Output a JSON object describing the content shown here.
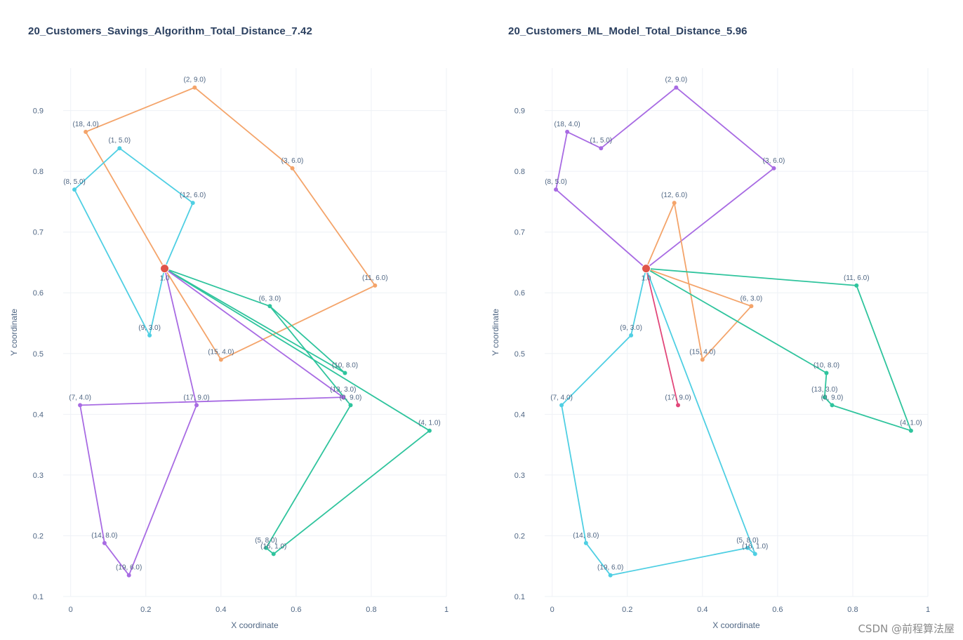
{
  "watermark": "CSDN @前程算法屋",
  "chart_data": [
    {
      "type": "line",
      "title": "20_Customers_Savings_Algorithm_Total_Distance_7.42",
      "xlabel": "X coordinate",
      "ylabel": "Y coordinate",
      "xlim": [
        -0.02,
        1.0
      ],
      "ylim": [
        0.1,
        0.97
      ],
      "x_ticks": [
        0,
        0.2,
        0.4,
        0.6,
        0.8,
        1
      ],
      "x_tick_labels": [
        "0",
        "0.2",
        "0.4",
        "0.6",
        "0.8",
        "1"
      ],
      "y_ticks": [
        0.1,
        0.2,
        0.3,
        0.4,
        0.5,
        0.6,
        0.7,
        0.8,
        0.9
      ],
      "y_tick_labels": [
        "0.1",
        "0.2",
        "0.3",
        "0.4",
        "0.5",
        "0.6",
        "0.7",
        "0.8",
        "0.9"
      ],
      "depot": {
        "x": 0.25,
        "y": 0.64,
        "label": "1.0"
      },
      "series": [
        {
          "name": "route-orange",
          "color": "#f4a46a",
          "points": [
            {
              "x": 0.25,
              "y": 0.64,
              "label": ""
            },
            {
              "x": 0.04,
              "y": 0.865,
              "label": "(18, 4.0)"
            },
            {
              "x": 0.33,
              "y": 0.938,
              "label": "(2, 9.0)"
            },
            {
              "x": 0.59,
              "y": 0.805,
              "label": "(3, 6.0)"
            },
            {
              "x": 0.81,
              "y": 0.612,
              "label": "(11, 6.0)"
            },
            {
              "x": 0.4,
              "y": 0.49,
              "label": "(15, 4.0)"
            },
            {
              "x": 0.25,
              "y": 0.64,
              "label": ""
            }
          ]
        },
        {
          "name": "route-cyan",
          "color": "#4fcfe3",
          "points": [
            {
              "x": 0.25,
              "y": 0.64,
              "label": ""
            },
            {
              "x": 0.325,
              "y": 0.748,
              "label": "(12, 6.0)"
            },
            {
              "x": 0.13,
              "y": 0.838,
              "label": "(1, 5.0)"
            },
            {
              "x": 0.01,
              "y": 0.77,
              "label": "(8, 5.0)"
            },
            {
              "x": 0.21,
              "y": 0.53,
              "label": "(9, 3.0)"
            },
            {
              "x": 0.25,
              "y": 0.64,
              "label": ""
            }
          ]
        },
        {
          "name": "route-teal",
          "color": "#2fc49d",
          "points": [
            {
              "x": 0.25,
              "y": 0.64,
              "label": ""
            },
            {
              "x": 0.53,
              "y": 0.578,
              "label": "(6, 3.0)"
            },
            {
              "x": 0.73,
              "y": 0.468,
              "label": "(10, 8.0)"
            },
            {
              "x": 0.25,
              "y": 0.64,
              "label": ""
            }
          ]
        },
        {
          "name": "route-teal-2",
          "color": "#2fc49d",
          "points": [
            {
              "x": 0.25,
              "y": 0.64,
              "label": ""
            },
            {
              "x": 0.955,
              "y": 0.373,
              "label": "(4, 1.0)"
            },
            {
              "x": 0.54,
              "y": 0.17,
              "label": "(16, 1.0)"
            },
            {
              "x": 0.52,
              "y": 0.18,
              "label": "(5, 8.0)"
            },
            {
              "x": 0.745,
              "y": 0.415,
              "label": "(0, 9.0)"
            },
            {
              "x": 0.53,
              "y": 0.578,
              "label": ""
            }
          ]
        },
        {
          "name": "route-purple",
          "color": "#a86be3",
          "points": [
            {
              "x": 0.25,
              "y": 0.64,
              "label": ""
            },
            {
              "x": 0.725,
              "y": 0.428,
              "label": "(13, 3.0)"
            },
            {
              "x": 0.025,
              "y": 0.415,
              "label": "(7, 4.0)"
            },
            {
              "x": 0.09,
              "y": 0.188,
              "label": "(14, 8.0)"
            },
            {
              "x": 0.155,
              "y": 0.135,
              "label": "(19, 6.0)"
            },
            {
              "x": 0.335,
              "y": 0.415,
              "label": "(17, 9.0)"
            },
            {
              "x": 0.25,
              "y": 0.64,
              "label": ""
            }
          ]
        }
      ]
    },
    {
      "type": "line",
      "title": "20_Customers_ML_Model_Total_Distance_5.96",
      "xlabel": "X coordinate",
      "ylabel": "Y coordinate",
      "xlim": [
        -0.02,
        1.0
      ],
      "ylim": [
        0.1,
        0.97
      ],
      "x_ticks": [
        0,
        0.2,
        0.4,
        0.6,
        0.8,
        1
      ],
      "x_tick_labels": [
        "0",
        "0.2",
        "0.4",
        "0.6",
        "0.8",
        "1"
      ],
      "y_ticks": [
        0.1,
        0.2,
        0.3,
        0.4,
        0.5,
        0.6,
        0.7,
        0.8,
        0.9
      ],
      "y_tick_labels": [
        "0.1",
        "0.2",
        "0.3",
        "0.4",
        "0.5",
        "0.6",
        "0.7",
        "0.8",
        "0.9"
      ],
      "depot": {
        "x": 0.25,
        "y": 0.64,
        "label": "1.0"
      },
      "series": [
        {
          "name": "route-purple",
          "color": "#a86be3",
          "points": [
            {
              "x": 0.25,
              "y": 0.64,
              "label": ""
            },
            {
              "x": 0.01,
              "y": 0.77,
              "label": "(8, 5.0)"
            },
            {
              "x": 0.04,
              "y": 0.865,
              "label": "(18, 4.0)"
            },
            {
              "x": 0.13,
              "y": 0.838,
              "label": "(1, 5.0)"
            },
            {
              "x": 0.33,
              "y": 0.938,
              "label": "(2, 9.0)"
            },
            {
              "x": 0.59,
              "y": 0.805,
              "label": "(3, 6.0)"
            },
            {
              "x": 0.25,
              "y": 0.64,
              "label": ""
            }
          ]
        },
        {
          "name": "route-orange",
          "color": "#f4a46a",
          "points": [
            {
              "x": 0.25,
              "y": 0.64,
              "label": ""
            },
            {
              "x": 0.325,
              "y": 0.748,
              "label": "(12, 6.0)"
            },
            {
              "x": 0.4,
              "y": 0.49,
              "label": "(15, 4.0)"
            },
            {
              "x": 0.53,
              "y": 0.578,
              "label": "(6, 3.0)"
            },
            {
              "x": 0.25,
              "y": 0.64,
              "label": ""
            }
          ]
        },
        {
          "name": "route-teal",
          "color": "#2fc49d",
          "points": [
            {
              "x": 0.25,
              "y": 0.64,
              "label": ""
            },
            {
              "x": 0.81,
              "y": 0.612,
              "label": "(11, 6.0)"
            },
            {
              "x": 0.955,
              "y": 0.373,
              "label": "(4, 1.0)"
            },
            {
              "x": 0.745,
              "y": 0.415,
              "label": "(0, 9.0)"
            },
            {
              "x": 0.725,
              "y": 0.428,
              "label": "(13, 3.0)"
            },
            {
              "x": 0.73,
              "y": 0.468,
              "label": "(10, 8.0)"
            },
            {
              "x": 0.25,
              "y": 0.64,
              "label": ""
            }
          ]
        },
        {
          "name": "route-pink",
          "color": "#e2477a",
          "points": [
            {
              "x": 0.25,
              "y": 0.64,
              "label": ""
            },
            {
              "x": 0.335,
              "y": 0.415,
              "label": "(17, 9.0)"
            }
          ]
        },
        {
          "name": "route-cyan",
          "color": "#4fcfe3",
          "points": [
            {
              "x": 0.25,
              "y": 0.64,
              "label": ""
            },
            {
              "x": 0.21,
              "y": 0.53,
              "label": "(9, 3.0)"
            },
            {
              "x": 0.025,
              "y": 0.415,
              "label": "(7, 4.0)"
            },
            {
              "x": 0.09,
              "y": 0.188,
              "label": "(14, 8.0)"
            },
            {
              "x": 0.155,
              "y": 0.135,
              "label": "(19, 6.0)"
            },
            {
              "x": 0.52,
              "y": 0.18,
              "label": "(5, 8.0)"
            },
            {
              "x": 0.54,
              "y": 0.17,
              "label": "(16, 1.0)"
            },
            {
              "x": 0.25,
              "y": 0.64,
              "label": ""
            }
          ]
        }
      ]
    }
  ]
}
